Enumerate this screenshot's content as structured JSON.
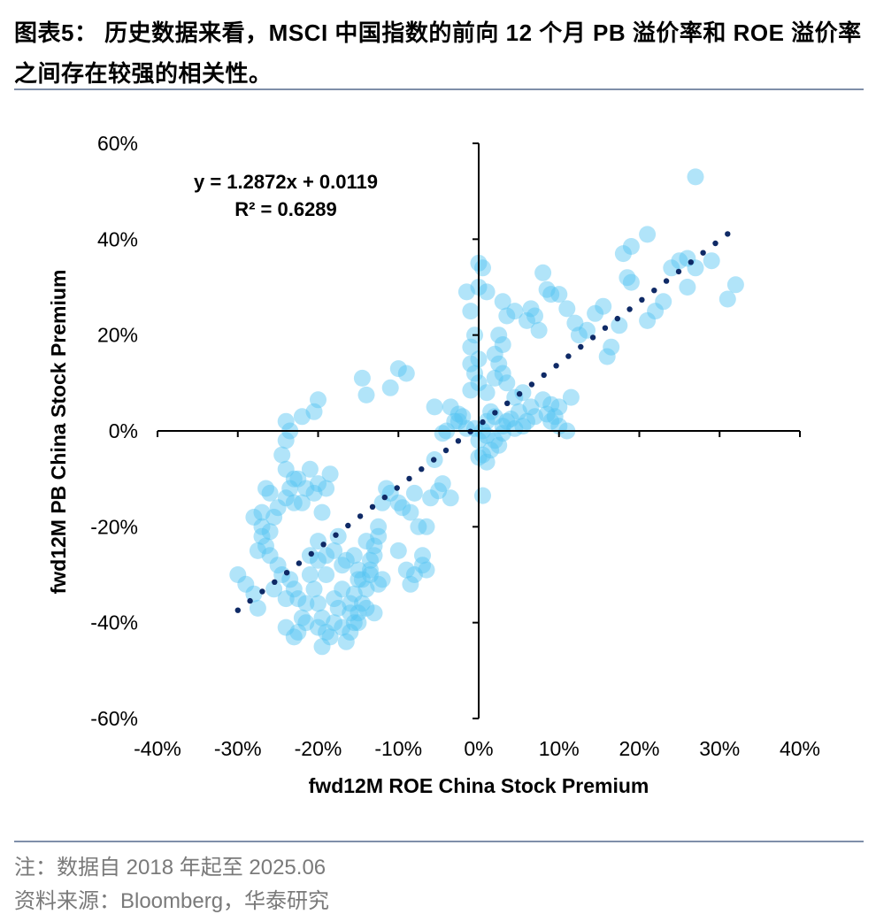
{
  "header": {
    "title": "图表5： 历史数据来看，MSCI 中国指数的前向 12 个月 PB 溢价率和 ROE 溢价率之间存在较强的相关性。"
  },
  "footer": {
    "note": "注：数据自 2018 年起至 2025.06",
    "source": "资料来源：Bloomberg，华泰研究"
  },
  "colors": {
    "point": "#52c3f1",
    "trendline": "#0f2a66",
    "axis": "#000000",
    "rule": "#7f8fa9"
  },
  "chart_data": {
    "type": "scatter",
    "title": "",
    "xlabel": "fwd12M ROE China Stock Premium",
    "ylabel": "fwd12M PB China Stock Premium",
    "xlim": [
      -0.4,
      0.4
    ],
    "ylim": [
      -0.6,
      0.6
    ],
    "x_ticks": [
      "-40%",
      "-30%",
      "-20%",
      "-10%",
      "0%",
      "10%",
      "20%",
      "30%",
      "40%"
    ],
    "y_ticks": [
      "60%",
      "40%",
      "20%",
      "0%",
      "-20%",
      "-40%",
      "-60%"
    ],
    "trendline": {
      "slope": 1.2872,
      "intercept": 0.0119,
      "x_range": [
        -0.3,
        0.31
      ],
      "equation_label": "y = 1.2872x + 0.0119",
      "r2_label": "R² = 0.6289"
    },
    "series": [
      {
        "name": "China Stock Premium",
        "points": [
          [
            0.27,
            0.53
          ],
          [
            0.21,
            0.41
          ],
          [
            0.26,
            0.36
          ],
          [
            0.25,
            0.355
          ],
          [
            0.19,
            0.385
          ],
          [
            0.18,
            0.37
          ],
          [
            0.24,
            0.34
          ],
          [
            0.27,
            0.34
          ],
          [
            0.29,
            0.355
          ],
          [
            0.32,
            0.305
          ],
          [
            0.31,
            0.275
          ],
          [
            0.26,
            0.3
          ],
          [
            0.19,
            0.31
          ],
          [
            0.185,
            0.32
          ],
          [
            0.22,
            0.25
          ],
          [
            0.21,
            0.23
          ],
          [
            0.23,
            0.27
          ],
          [
            0.175,
            0.22
          ],
          [
            0.165,
            0.175
          ],
          [
            0.16,
            0.155
          ],
          [
            0.12,
            0.225
          ],
          [
            0.125,
            0.2
          ],
          [
            0.135,
            0.21
          ],
          [
            0.145,
            0.245
          ],
          [
            0.155,
            0.26
          ],
          [
            0.11,
            0.255
          ],
          [
            0.085,
            0.295
          ],
          [
            0.08,
            0.33
          ],
          [
            0.09,
            0.285
          ],
          [
            0.1,
            0.285
          ],
          [
            0.065,
            0.255
          ],
          [
            0.045,
            0.25
          ],
          [
            0.07,
            0.24
          ],
          [
            0.075,
            0.21
          ],
          [
            0.06,
            0.23
          ],
          [
            0.03,
            0.27
          ],
          [
            0.035,
            0.24
          ],
          [
            0.025,
            0.2
          ],
          [
            0.03,
            0.18
          ],
          [
            0.02,
            0.16
          ],
          [
            0.025,
            0.14
          ],
          [
            0.03,
            0.12
          ],
          [
            0.02,
            0.11
          ],
          [
            0.035,
            0.1
          ],
          [
            0.01,
            0.08
          ],
          [
            0.045,
            0.07
          ],
          [
            0.055,
            0.08
          ],
          [
            0.065,
            0.05
          ],
          [
            0.08,
            0.065
          ],
          [
            0.09,
            0.055
          ],
          [
            0.1,
            0.05
          ],
          [
            0.115,
            0.07
          ],
          [
            0.085,
            0.035
          ],
          [
            0.09,
            0.02
          ],
          [
            0.095,
            0.03
          ],
          [
            0.1,
            0.01
          ],
          [
            0.11,
            0.0
          ],
          [
            0.07,
            0.03
          ],
          [
            0.06,
            0.02
          ],
          [
            0.055,
            0.01
          ],
          [
            0.05,
            0.04
          ],
          [
            0.045,
            0.005
          ],
          [
            0.04,
            0.025
          ],
          [
            0.035,
            0.02
          ],
          [
            0.03,
            0.01
          ],
          [
            0.02,
            0.03
          ],
          [
            0.015,
            0.04
          ],
          [
            0.01,
            0.02
          ],
          [
            0.005,
            0.0
          ],
          [
            0.01,
            -0.01
          ],
          [
            0.02,
            -0.02
          ],
          [
            0.03,
            -0.005
          ],
          [
            0.025,
            -0.03
          ],
          [
            0.015,
            -0.04
          ],
          [
            0.005,
            -0.05
          ],
          [
            0.01,
            -0.065
          ],
          [
            0.0,
            -0.055
          ],
          [
            0.0,
            -0.02
          ],
          [
            -0.005,
            0.005
          ],
          [
            0.0,
            0.35
          ],
          [
            0.005,
            0.34
          ],
          [
            0.01,
            0.29
          ],
          [
            0.0,
            0.3
          ],
          [
            -0.015,
            0.29
          ],
          [
            -0.01,
            0.25
          ],
          [
            -0.005,
            0.2
          ],
          [
            -0.01,
            0.175
          ],
          [
            0.0,
            0.15
          ],
          [
            -0.01,
            0.14
          ],
          [
            -0.005,
            0.12
          ],
          [
            0.0,
            0.1
          ],
          [
            -0.01,
            0.085
          ],
          [
            -0.02,
            0.03
          ],
          [
            -0.025,
            0.02
          ],
          [
            -0.03,
            0.02
          ],
          [
            -0.035,
            0.05
          ],
          [
            -0.04,
            0.0
          ],
          [
            -0.045,
            -0.005
          ],
          [
            -0.055,
            -0.06
          ],
          [
            -0.045,
            -0.11
          ],
          [
            -0.05,
            -0.125
          ],
          [
            -0.035,
            -0.14
          ],
          [
            -0.06,
            -0.14
          ],
          [
            -0.065,
            -0.2
          ],
          [
            -0.07,
            -0.26
          ],
          [
            -0.07,
            -0.28
          ],
          [
            -0.065,
            -0.29
          ],
          [
            -0.08,
            -0.3
          ],
          [
            -0.085,
            -0.32
          ],
          [
            -0.09,
            -0.29
          ],
          [
            -0.1,
            -0.25
          ],
          [
            -0.095,
            -0.16
          ],
          [
            -0.085,
            -0.17
          ],
          [
            -0.075,
            -0.2
          ],
          [
            -0.08,
            -0.13
          ],
          [
            -0.1,
            -0.15
          ],
          [
            -0.11,
            -0.13
          ],
          [
            -0.115,
            -0.12
          ],
          [
            -0.12,
            -0.15
          ],
          [
            -0.125,
            -0.2
          ],
          [
            -0.125,
            -0.22
          ],
          [
            -0.13,
            -0.24
          ],
          [
            -0.13,
            -0.26
          ],
          [
            -0.125,
            -0.32
          ],
          [
            -0.135,
            -0.3
          ],
          [
            -0.14,
            -0.33
          ],
          [
            -0.145,
            -0.31
          ],
          [
            -0.15,
            -0.29
          ],
          [
            -0.145,
            -0.36
          ],
          [
            -0.15,
            -0.38
          ],
          [
            -0.155,
            -0.4
          ],
          [
            -0.16,
            -0.42
          ],
          [
            -0.165,
            -0.44
          ],
          [
            -0.17,
            -0.41
          ],
          [
            -0.175,
            -0.37
          ],
          [
            -0.18,
            -0.4
          ],
          [
            -0.185,
            -0.43
          ],
          [
            -0.19,
            -0.42
          ],
          [
            -0.195,
            -0.39
          ],
          [
            -0.2,
            -0.36
          ],
          [
            -0.205,
            -0.33
          ],
          [
            -0.21,
            -0.3
          ],
          [
            -0.2,
            -0.27
          ],
          [
            -0.19,
            -0.26
          ],
          [
            -0.18,
            -0.25
          ],
          [
            -0.175,
            -0.22
          ],
          [
            -0.165,
            -0.27
          ],
          [
            -0.155,
            -0.26
          ],
          [
            -0.15,
            -0.31
          ],
          [
            -0.135,
            -0.29
          ],
          [
            -0.14,
            -0.23
          ],
          [
            -0.215,
            -0.36
          ],
          [
            -0.22,
            -0.39
          ],
          [
            -0.225,
            -0.42
          ],
          [
            -0.23,
            -0.43
          ],
          [
            -0.24,
            -0.41
          ],
          [
            -0.225,
            -0.35
          ],
          [
            -0.23,
            -0.33
          ],
          [
            -0.235,
            -0.31
          ],
          [
            -0.24,
            -0.35
          ],
          [
            -0.245,
            -0.3
          ],
          [
            -0.25,
            -0.28
          ],
          [
            -0.255,
            -0.33
          ],
          [
            -0.26,
            -0.26
          ],
          [
            -0.265,
            -0.24
          ],
          [
            -0.27,
            -0.22
          ],
          [
            -0.27,
            -0.2
          ],
          [
            -0.275,
            -0.37
          ],
          [
            -0.28,
            -0.34
          ],
          [
            -0.29,
            -0.32
          ],
          [
            -0.3,
            -0.3
          ],
          [
            -0.275,
            -0.25
          ],
          [
            -0.26,
            -0.21
          ],
          [
            -0.255,
            -0.18
          ],
          [
            -0.25,
            -0.16
          ],
          [
            -0.26,
            -0.13
          ],
          [
            -0.265,
            -0.12
          ],
          [
            -0.27,
            -0.17
          ],
          [
            -0.28,
            -0.18
          ],
          [
            -0.24,
            -0.14
          ],
          [
            -0.235,
            -0.12
          ],
          [
            -0.23,
            -0.1
          ],
          [
            -0.24,
            -0.08
          ],
          [
            -0.245,
            -0.05
          ],
          [
            -0.24,
            -0.02
          ],
          [
            -0.235,
            0.0
          ],
          [
            -0.24,
            0.02
          ],
          [
            -0.22,
            0.03
          ],
          [
            -0.205,
            0.04
          ],
          [
            -0.2,
            0.065
          ],
          [
            -0.215,
            -0.12
          ],
          [
            -0.22,
            -0.15
          ],
          [
            -0.205,
            -0.13
          ],
          [
            -0.2,
            -0.11
          ],
          [
            -0.195,
            -0.17
          ],
          [
            -0.19,
            -0.12
          ],
          [
            -0.185,
            -0.09
          ],
          [
            -0.21,
            -0.08
          ],
          [
            -0.225,
            -0.1
          ],
          [
            -0.23,
            -0.15
          ],
          [
            -0.145,
            0.11
          ],
          [
            -0.14,
            0.075
          ],
          [
            -0.11,
            0.09
          ],
          [
            -0.1,
            0.13
          ],
          [
            -0.09,
            0.12
          ],
          [
            -0.055,
            0.05
          ],
          [
            -0.025,
            0.035
          ],
          [
            -0.015,
            0.005
          ],
          [
            0.005,
            -0.135
          ],
          [
            -0.17,
            -0.33
          ],
          [
            -0.16,
            -0.36
          ],
          [
            -0.155,
            -0.34
          ],
          [
            -0.14,
            -0.37
          ],
          [
            -0.13,
            -0.38
          ],
          [
            -0.19,
            -0.3
          ],
          [
            -0.2,
            -0.23
          ],
          [
            -0.21,
            -0.26
          ],
          [
            -0.17,
            -0.28
          ],
          [
            -0.195,
            -0.45
          ],
          [
            -0.2,
            -0.41
          ],
          [
            -0.215,
            -0.4
          ],
          [
            -0.135,
            -0.27
          ],
          [
            -0.12,
            -0.31
          ],
          [
            -0.15,
            -0.4
          ],
          [
            -0.16,
            -0.38
          ],
          [
            -0.18,
            -0.35
          ]
        ]
      }
    ]
  }
}
